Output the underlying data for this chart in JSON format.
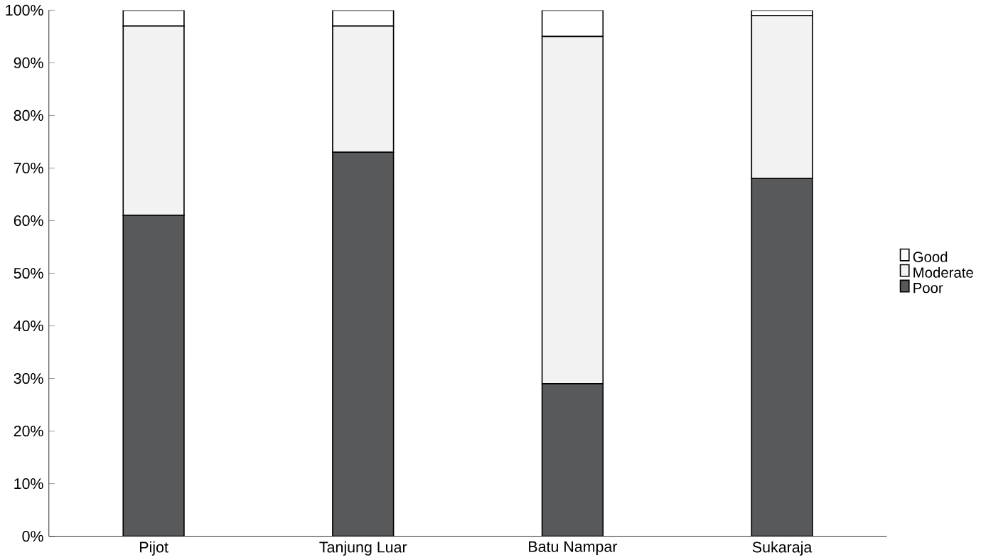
{
  "chart_data": {
    "type": "bar",
    "stacked": true,
    "categories": [
      "Pijot",
      "Tanjung Luar",
      "Batu Nampar",
      "Sukaraja"
    ],
    "series": [
      {
        "name": "Poor",
        "color": "#58595b",
        "values": [
          61,
          73,
          29,
          68
        ]
      },
      {
        "name": "Moderate",
        "color": "#f2f2f2",
        "values": [
          36,
          24,
          66,
          31
        ]
      },
      {
        "name": "Good",
        "color": "#ffffff",
        "values": [
          3,
          3,
          5,
          1
        ]
      }
    ],
    "ylim": [
      0,
      100
    ],
    "yticks": [
      {
        "value": 0,
        "label": "0%"
      },
      {
        "value": 10,
        "label": "10%"
      },
      {
        "value": 20,
        "label": "20%"
      },
      {
        "value": 30,
        "label": "30%"
      },
      {
        "value": 40,
        "label": "40%"
      },
      {
        "value": 50,
        "label": "50%"
      },
      {
        "value": 60,
        "label": "60%"
      },
      {
        "value": 70,
        "label": "70%"
      },
      {
        "value": 80,
        "label": "80%"
      },
      {
        "value": 90,
        "label": "90%"
      },
      {
        "value": 100,
        "label": "100%"
      }
    ],
    "grid": false,
    "legend": "right"
  }
}
